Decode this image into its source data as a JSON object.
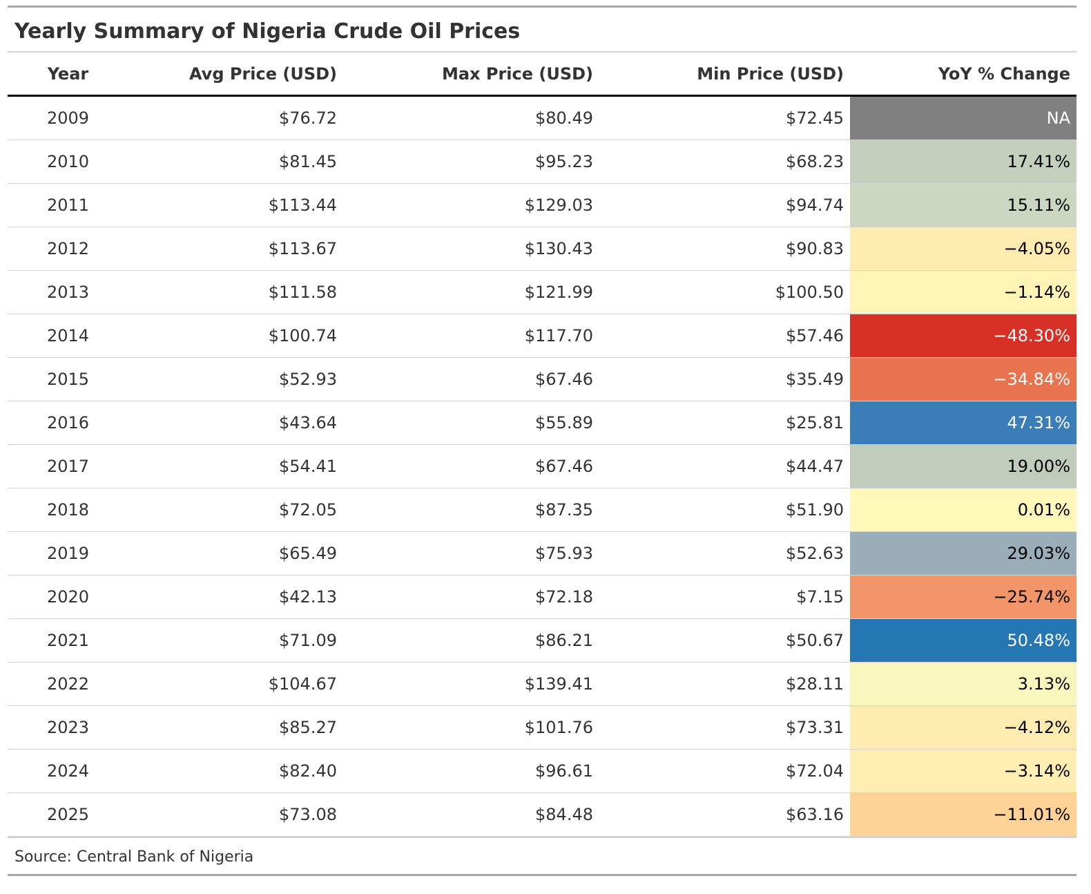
{
  "title": "Yearly Summary of Nigeria Crude Oil Prices",
  "source_note": "Source: Central Bank of Nigeria",
  "columns": [
    "Year",
    "Avg Price (USD)",
    "Max Price (USD)",
    "Min Price (USD)",
    "YoY % Change"
  ],
  "rows": [
    {
      "year": "2009",
      "avg": "$76.72",
      "max": "$80.49",
      "min": "$72.45",
      "yoy": "NA",
      "yoy_bg": "#808080",
      "yoy_fg": "#ffffff"
    },
    {
      "year": "2010",
      "avg": "$81.45",
      "max": "$95.23",
      "min": "$68.23",
      "yoy": "17.41%",
      "yoy_bg": "#c4d0bd",
      "yoy_fg": "#000000"
    },
    {
      "year": "2011",
      "avg": "$113.44",
      "max": "$129.03",
      "min": "$94.74",
      "yoy": "15.11%",
      "yoy_bg": "#cbd7c0",
      "yoy_fg": "#000000"
    },
    {
      "year": "2012",
      "avg": "$113.67",
      "max": "$130.43",
      "min": "$90.83",
      "yoy": "−4.05%",
      "yoy_bg": "#feebb0",
      "yoy_fg": "#000000"
    },
    {
      "year": "2013",
      "avg": "$111.58",
      "max": "$121.99",
      "min": "$100.50",
      "yoy": "−1.14%",
      "yoy_bg": "#fff3b6",
      "yoy_fg": "#000000"
    },
    {
      "year": "2014",
      "avg": "$100.74",
      "max": "$117.70",
      "min": "$57.46",
      "yoy": "−48.30%",
      "yoy_bg": "#d73027",
      "yoy_fg": "#ffffff"
    },
    {
      "year": "2015",
      "avg": "$52.93",
      "max": "$67.46",
      "min": "$35.49",
      "yoy": "−34.84%",
      "yoy_bg": "#e8744f",
      "yoy_fg": "#ffffff"
    },
    {
      "year": "2016",
      "avg": "$43.64",
      "max": "$55.89",
      "min": "$25.81",
      "yoy": "47.31%",
      "yoy_bg": "#3b7db6",
      "yoy_fg": "#ffffff"
    },
    {
      "year": "2017",
      "avg": "$54.41",
      "max": "$67.46",
      "min": "$44.47",
      "yoy": "19.00%",
      "yoy_bg": "#bfcbbb",
      "yoy_fg": "#000000"
    },
    {
      "year": "2018",
      "avg": "$72.05",
      "max": "$87.35",
      "min": "$51.90",
      "yoy": "0.01%",
      "yoy_bg": "#fff8b9",
      "yoy_fg": "#000000"
    },
    {
      "year": "2019",
      "avg": "$65.49",
      "max": "$75.93",
      "min": "$52.63",
      "yoy": "29.03%",
      "yoy_bg": "#99aeb8",
      "yoy_fg": "#000000"
    },
    {
      "year": "2020",
      "avg": "$42.13",
      "max": "$72.18",
      "min": "$7.15",
      "yoy": "−25.74%",
      "yoy_bg": "#f2966a",
      "yoy_fg": "#000000"
    },
    {
      "year": "2021",
      "avg": "$71.09",
      "max": "$86.21",
      "min": "$50.67",
      "yoy": "50.48%",
      "yoy_bg": "#2577b4",
      "yoy_fg": "#ffffff"
    },
    {
      "year": "2022",
      "avg": "$104.67",
      "max": "$139.41",
      "min": "$28.11",
      "yoy": "3.13%",
      "yoy_bg": "#f7f6bc",
      "yoy_fg": "#000000"
    },
    {
      "year": "2023",
      "avg": "$85.27",
      "max": "$101.76",
      "min": "$73.31",
      "yoy": "−4.12%",
      "yoy_bg": "#feebb0",
      "yoy_fg": "#000000"
    },
    {
      "year": "2024",
      "avg": "$82.40",
      "max": "$96.61",
      "min": "$72.04",
      "yoy": "−3.14%",
      "yoy_bg": "#feeeb2",
      "yoy_fg": "#000000"
    },
    {
      "year": "2025",
      "avg": "$73.08",
      "max": "$84.48",
      "min": "$63.16",
      "yoy": "−11.01%",
      "yoy_bg": "#fed195",
      "yoy_fg": "#000000"
    }
  ],
  "chart_data": {
    "type": "table",
    "title": "Yearly Summary of Nigeria Crude Oil Prices",
    "columns": [
      "Year",
      "Avg Price (USD)",
      "Max Price (USD)",
      "Min Price (USD)",
      "YoY % Change"
    ],
    "rows": [
      [
        2009,
        76.72,
        80.49,
        72.45,
        null
      ],
      [
        2010,
        81.45,
        95.23,
        68.23,
        17.41
      ],
      [
        2011,
        113.44,
        129.03,
        94.74,
        15.11
      ],
      [
        2012,
        113.67,
        130.43,
        90.83,
        -4.05
      ],
      [
        2013,
        111.58,
        121.99,
        100.5,
        -1.14
      ],
      [
        2014,
        100.74,
        117.7,
        57.46,
        -48.3
      ],
      [
        2015,
        52.93,
        67.46,
        35.49,
        -34.84
      ],
      [
        2016,
        43.64,
        55.89,
        25.81,
        47.31
      ],
      [
        2017,
        54.41,
        67.46,
        44.47,
        19.0
      ],
      [
        2018,
        72.05,
        87.35,
        51.9,
        0.01
      ],
      [
        2019,
        65.49,
        75.93,
        52.63,
        29.03
      ],
      [
        2020,
        42.13,
        72.18,
        7.15,
        -25.74
      ],
      [
        2021,
        71.09,
        86.21,
        50.67,
        50.48
      ],
      [
        2022,
        104.67,
        139.41,
        28.11,
        3.13
      ],
      [
        2023,
        85.27,
        101.76,
        73.31,
        -4.12
      ],
      [
        2024,
        82.4,
        96.61,
        72.04,
        -3.14
      ],
      [
        2025,
        73.08,
        84.48,
        63.16,
        -11.01
      ]
    ],
    "source": "Source: Central Bank of Nigeria"
  }
}
